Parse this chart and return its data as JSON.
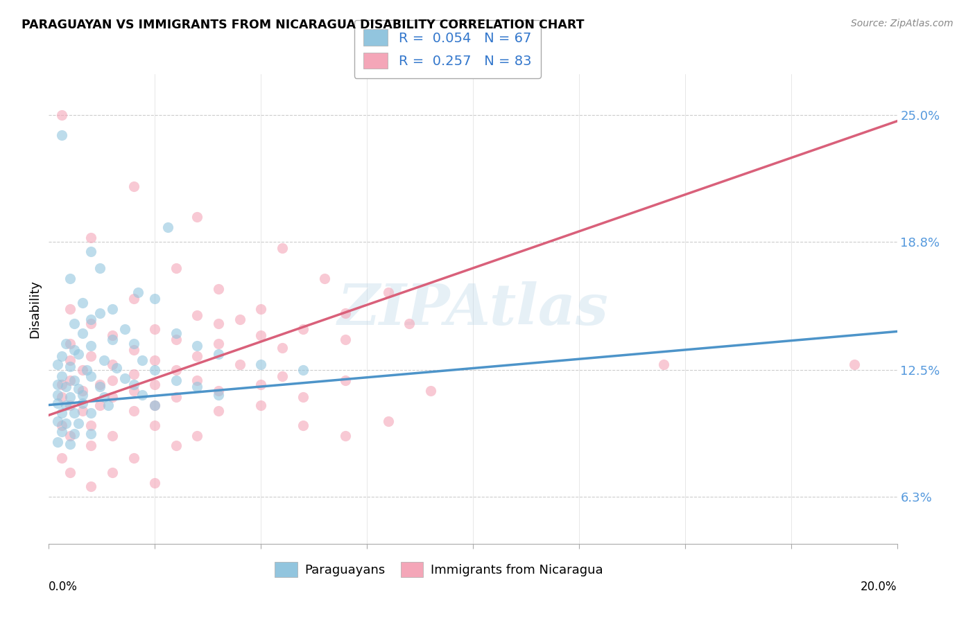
{
  "title": "PARAGUAYAN VS IMMIGRANTS FROM NICARAGUA DISABILITY CORRELATION CHART",
  "source": "Source: ZipAtlas.com",
  "ylabel": "Disability",
  "xlim": [
    0.0,
    0.2
  ],
  "ylim": [
    0.04,
    0.27
  ],
  "yticks": [
    0.063,
    0.125,
    0.188,
    0.25
  ],
  "ytick_labels": [
    "6.3%",
    "12.5%",
    "18.8%",
    "25.0%"
  ],
  "color_blue": "#92c5de",
  "color_pink": "#f4a6b8",
  "trendline_blue": "#4d94c9",
  "trendline_pink": "#d9607a",
  "watermark": "ZIPAtlas",
  "blue_intercept": 0.108,
  "blue_slope": 0.18,
  "pink_intercept": 0.103,
  "pink_slope": 0.72,
  "blue_scatter": [
    [
      0.003,
      0.24
    ],
    [
      0.012,
      0.175
    ],
    [
      0.028,
      0.195
    ],
    [
      0.005,
      0.17
    ],
    [
      0.01,
      0.183
    ],
    [
      0.021,
      0.163
    ],
    [
      0.008,
      0.158
    ],
    [
      0.015,
      0.155
    ],
    [
      0.01,
      0.15
    ],
    [
      0.006,
      0.148
    ],
    [
      0.012,
      0.153
    ],
    [
      0.025,
      0.16
    ],
    [
      0.008,
      0.143
    ],
    [
      0.018,
      0.145
    ],
    [
      0.03,
      0.143
    ],
    [
      0.004,
      0.138
    ],
    [
      0.01,
      0.137
    ],
    [
      0.015,
      0.14
    ],
    [
      0.006,
      0.135
    ],
    [
      0.02,
      0.138
    ],
    [
      0.035,
      0.137
    ],
    [
      0.003,
      0.132
    ],
    [
      0.007,
      0.133
    ],
    [
      0.013,
      0.13
    ],
    [
      0.022,
      0.13
    ],
    [
      0.04,
      0.133
    ],
    [
      0.002,
      0.128
    ],
    [
      0.005,
      0.127
    ],
    [
      0.009,
      0.125
    ],
    [
      0.016,
      0.126
    ],
    [
      0.025,
      0.125
    ],
    [
      0.05,
      0.128
    ],
    [
      0.003,
      0.122
    ],
    [
      0.006,
      0.12
    ],
    [
      0.01,
      0.122
    ],
    [
      0.018,
      0.121
    ],
    [
      0.03,
      0.12
    ],
    [
      0.06,
      0.125
    ],
    [
      0.002,
      0.118
    ],
    [
      0.004,
      0.117
    ],
    [
      0.007,
      0.116
    ],
    [
      0.012,
      0.117
    ],
    [
      0.02,
      0.118
    ],
    [
      0.035,
      0.117
    ],
    [
      0.002,
      0.113
    ],
    [
      0.005,
      0.112
    ],
    [
      0.008,
      0.113
    ],
    [
      0.013,
      0.112
    ],
    [
      0.022,
      0.113
    ],
    [
      0.04,
      0.113
    ],
    [
      0.002,
      0.109
    ],
    [
      0.004,
      0.108
    ],
    [
      0.008,
      0.109
    ],
    [
      0.014,
      0.108
    ],
    [
      0.025,
      0.108
    ],
    [
      0.003,
      0.104
    ],
    [
      0.006,
      0.104
    ],
    [
      0.01,
      0.104
    ],
    [
      0.002,
      0.1
    ],
    [
      0.004,
      0.099
    ],
    [
      0.007,
      0.099
    ],
    [
      0.003,
      0.095
    ],
    [
      0.006,
      0.094
    ],
    [
      0.01,
      0.094
    ],
    [
      0.002,
      0.09
    ],
    [
      0.005,
      0.089
    ]
  ],
  "pink_scatter": [
    [
      0.003,
      0.25
    ],
    [
      0.02,
      0.215
    ],
    [
      0.035,
      0.2
    ],
    [
      0.01,
      0.19
    ],
    [
      0.055,
      0.185
    ],
    [
      0.03,
      0.175
    ],
    [
      0.065,
      0.17
    ],
    [
      0.04,
      0.165
    ],
    [
      0.08,
      0.163
    ],
    [
      0.02,
      0.16
    ],
    [
      0.005,
      0.155
    ],
    [
      0.05,
      0.155
    ],
    [
      0.035,
      0.152
    ],
    [
      0.07,
      0.153
    ],
    [
      0.01,
      0.148
    ],
    [
      0.045,
      0.15
    ],
    [
      0.04,
      0.148
    ],
    [
      0.085,
      0.148
    ],
    [
      0.025,
      0.145
    ],
    [
      0.06,
      0.145
    ],
    [
      0.015,
      0.142
    ],
    [
      0.05,
      0.142
    ],
    [
      0.03,
      0.14
    ],
    [
      0.07,
      0.14
    ],
    [
      0.005,
      0.138
    ],
    [
      0.04,
      0.138
    ],
    [
      0.02,
      0.135
    ],
    [
      0.055,
      0.136
    ],
    [
      0.01,
      0.132
    ],
    [
      0.035,
      0.132
    ],
    [
      0.005,
      0.13
    ],
    [
      0.025,
      0.13
    ],
    [
      0.015,
      0.128
    ],
    [
      0.045,
      0.128
    ],
    [
      0.008,
      0.125
    ],
    [
      0.03,
      0.125
    ],
    [
      0.02,
      0.123
    ],
    [
      0.055,
      0.122
    ],
    [
      0.005,
      0.12
    ],
    [
      0.015,
      0.12
    ],
    [
      0.035,
      0.12
    ],
    [
      0.07,
      0.12
    ],
    [
      0.003,
      0.118
    ],
    [
      0.012,
      0.118
    ],
    [
      0.025,
      0.118
    ],
    [
      0.05,
      0.118
    ],
    [
      0.008,
      0.115
    ],
    [
      0.02,
      0.115
    ],
    [
      0.04,
      0.115
    ],
    [
      0.09,
      0.115
    ],
    [
      0.003,
      0.112
    ],
    [
      0.015,
      0.112
    ],
    [
      0.03,
      0.112
    ],
    [
      0.06,
      0.112
    ],
    [
      0.005,
      0.108
    ],
    [
      0.012,
      0.108
    ],
    [
      0.025,
      0.108
    ],
    [
      0.05,
      0.108
    ],
    [
      0.008,
      0.105
    ],
    [
      0.02,
      0.105
    ],
    [
      0.04,
      0.105
    ],
    [
      0.08,
      0.1
    ],
    [
      0.003,
      0.098
    ],
    [
      0.01,
      0.098
    ],
    [
      0.025,
      0.098
    ],
    [
      0.06,
      0.098
    ],
    [
      0.005,
      0.093
    ],
    [
      0.015,
      0.093
    ],
    [
      0.035,
      0.093
    ],
    [
      0.07,
      0.093
    ],
    [
      0.01,
      0.088
    ],
    [
      0.03,
      0.088
    ],
    [
      0.003,
      0.082
    ],
    [
      0.02,
      0.082
    ],
    [
      0.005,
      0.075
    ],
    [
      0.015,
      0.075
    ],
    [
      0.01,
      0.068
    ],
    [
      0.025,
      0.07
    ],
    [
      0.145,
      0.128
    ],
    [
      0.19,
      0.128
    ]
  ]
}
